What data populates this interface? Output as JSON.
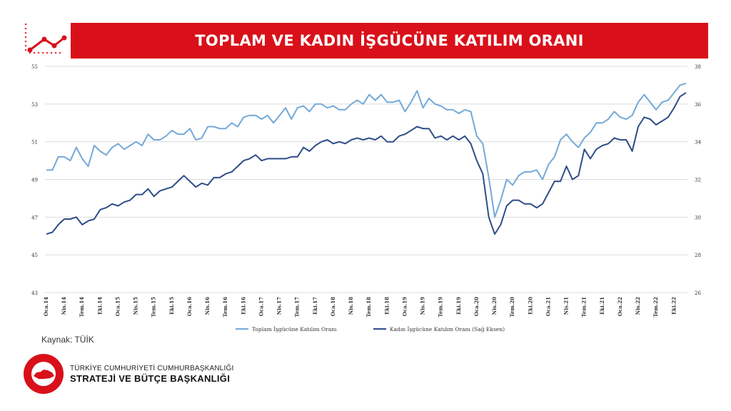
{
  "header": {
    "title": "TOPLAM VE KADIN İŞGÜCÜNE KATILIM ORANI"
  },
  "source": "Kaynak: TÜİK",
  "organization": {
    "line1": "TÜRKİYE CUMHURİYETİ CUMHURBAŞKANLIĞI",
    "line2": "STRATEJİ VE BÜTÇE BAŞKANLIĞI",
    "logo_text": "T.C. CUMHURBAŞKANLIĞI STRATEJİ VE BÜTÇE BAŞKANLIĞI"
  },
  "colors": {
    "accent": "#d9101a",
    "total": "#74a9d8",
    "women": "#2e4d87"
  },
  "chart_data": {
    "type": "line",
    "title": "",
    "legend_position": "bottom",
    "grid": true,
    "x_tick_labels": [
      "Oca.14",
      "Nis.14",
      "Tem.14",
      "Eki.14",
      "Oca.15",
      "Nis.15",
      "Tem.15",
      "Eki.15",
      "Oca.16",
      "Nis.16",
      "Tem.16",
      "Eki.16",
      "Oca.17",
      "Nis.17",
      "Tem.17",
      "Eki.17",
      "Oca.18",
      "Nis.18",
      "Tem.18",
      "Eki.18",
      "Oca.19",
      "Nis.19",
      "Tem.19",
      "Eki.19",
      "Oca.20",
      "Nis.20",
      "Tem.20",
      "Eki.20",
      "Oca.21",
      "Nis.21",
      "Tem.21",
      "Eki.21",
      "Oca.22",
      "Nis.22",
      "Tem.22",
      "Eki.22"
    ],
    "y_left": {
      "min": 43,
      "max": 55,
      "ticks": [
        43,
        45,
        47,
        49,
        51,
        53,
        55
      ]
    },
    "y_right": {
      "min": 26,
      "max": 38,
      "ticks": [
        26,
        28,
        30,
        32,
        34,
        36,
        38
      ]
    },
    "series": [
      {
        "name": "Toplam İşgücüne Katılım Oranı",
        "axis": "left",
        "values": [
          49.5,
          49.5,
          50.2,
          50.2,
          50.0,
          50.7,
          50.1,
          49.7,
          50.8,
          50.5,
          50.3,
          50.7,
          50.9,
          50.6,
          50.8,
          51.0,
          50.8,
          51.4,
          51.1,
          51.1,
          51.3,
          51.6,
          51.4,
          51.4,
          51.7,
          51.1,
          51.2,
          51.8,
          51.8,
          51.7,
          51.7,
          52.0,
          51.8,
          52.3,
          52.4,
          52.4,
          52.2,
          52.4,
          52.0,
          52.4,
          52.8,
          52.2,
          52.8,
          52.9,
          52.6,
          53.0,
          53.0,
          52.8,
          52.9,
          52.7,
          52.7,
          53.0,
          53.2,
          53.0,
          53.5,
          53.2,
          53.5,
          53.1,
          53.1,
          53.2,
          52.6,
          53.1,
          53.7,
          52.8,
          53.3,
          53.0,
          52.9,
          52.7,
          52.7,
          52.5,
          52.7,
          52.6,
          51.3,
          50.9,
          49.1,
          47.0,
          47.9,
          49.0,
          48.7,
          49.2,
          49.4,
          49.4,
          49.5,
          49.0,
          49.8,
          50.2,
          51.1,
          51.4,
          51.0,
          50.7,
          51.2,
          51.5,
          52.0,
          52.0,
          52.2,
          52.6,
          52.3,
          52.2,
          52.4,
          53.1,
          53.5,
          53.1,
          52.7,
          53.1,
          53.2,
          53.6,
          54.0,
          54.1
        ]
      },
      {
        "name": "Kadın İşgücüne Katılım Oranı (Sağ Eksen)",
        "axis": "right",
        "values": [
          29.1,
          29.2,
          29.6,
          29.9,
          29.9,
          30.0,
          29.6,
          29.8,
          29.9,
          30.4,
          30.5,
          30.7,
          30.6,
          30.8,
          30.9,
          31.2,
          31.2,
          31.5,
          31.1,
          31.4,
          31.5,
          31.6,
          31.9,
          32.2,
          31.9,
          31.6,
          31.8,
          31.7,
          32.1,
          32.1,
          32.3,
          32.4,
          32.7,
          33.0,
          33.1,
          33.3,
          33.0,
          33.1,
          33.1,
          33.1,
          33.1,
          33.2,
          33.2,
          33.7,
          33.5,
          33.8,
          34.0,
          34.1,
          33.9,
          34.0,
          33.9,
          34.1,
          34.2,
          34.1,
          34.2,
          34.1,
          34.3,
          34.0,
          34.0,
          34.3,
          34.4,
          34.6,
          34.8,
          34.7,
          34.7,
          34.2,
          34.3,
          34.1,
          34.3,
          34.1,
          34.3,
          33.9,
          33.0,
          32.3,
          30.0,
          29.1,
          29.6,
          30.6,
          30.9,
          30.9,
          30.7,
          30.7,
          30.5,
          30.7,
          31.3,
          31.9,
          31.9,
          32.7,
          32.0,
          32.2,
          33.6,
          33.1,
          33.6,
          33.8,
          33.9,
          34.2,
          34.1,
          34.1,
          33.5,
          34.8,
          35.3,
          35.2,
          34.9,
          35.1,
          35.3,
          35.8,
          36.4,
          36.6
        ]
      }
    ]
  }
}
